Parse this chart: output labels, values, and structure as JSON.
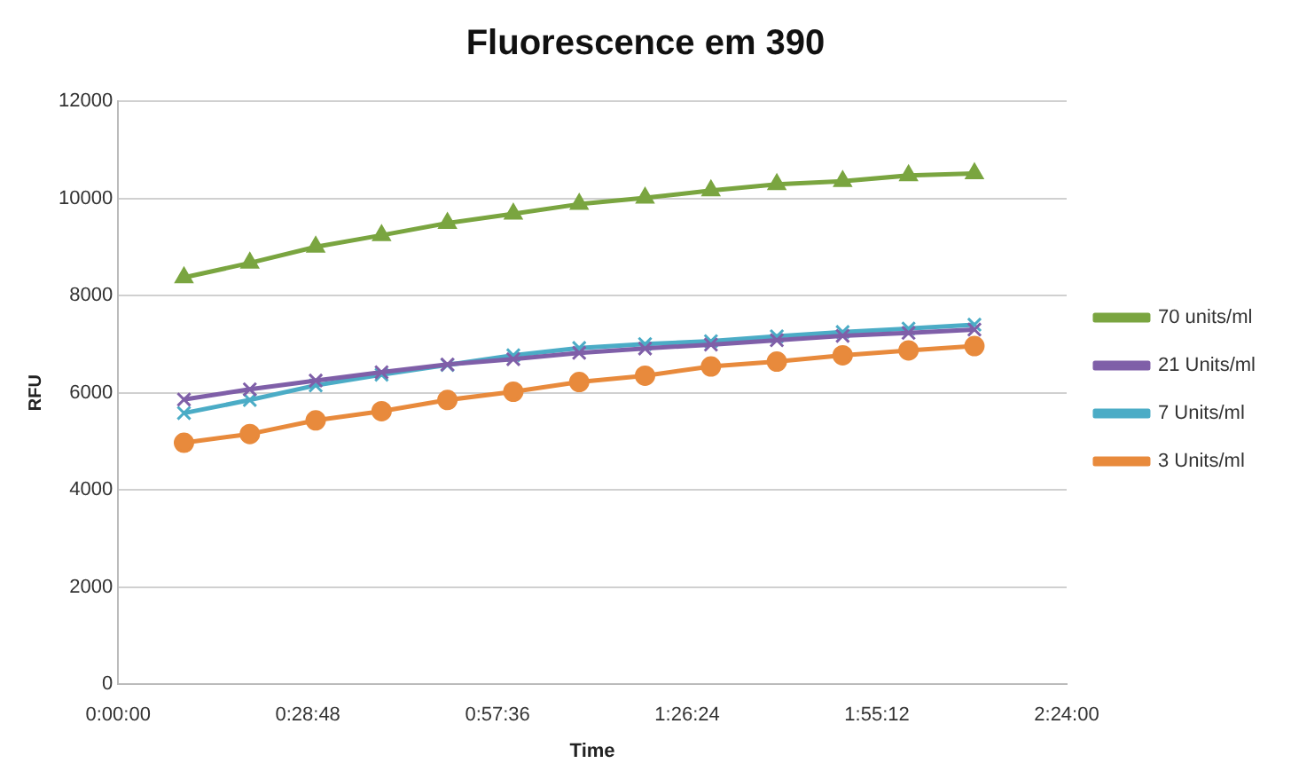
{
  "chart_data": {
    "type": "line",
    "title": "Fluorescence em 390",
    "xlabel": "Time",
    "ylabel": "RFU",
    "x": [
      0.1667,
      0.3333,
      0.5,
      0.6667,
      0.8333,
      1,
      1.1667,
      1.3333,
      1.5,
      1.6667,
      1.8333,
      2,
      2.1667
    ],
    "xlim": [
      0,
      2.4
    ],
    "xticks": [
      {
        "value": 0,
        "label": "0:00:00"
      },
      {
        "value": 0.48,
        "label": "0:28:48"
      },
      {
        "value": 0.96,
        "label": "0:57:36"
      },
      {
        "value": 1.44,
        "label": "1:26:24"
      },
      {
        "value": 1.92,
        "label": "1:55:12"
      },
      {
        "value": 2.4,
        "label": "2:24:00"
      }
    ],
    "ylim": [
      0,
      12000
    ],
    "yticks": [
      0,
      2000,
      4000,
      6000,
      8000,
      10000,
      12000
    ],
    "grid": "y",
    "legend": "right",
    "line_style": "solid",
    "series": [
      {
        "name": "70 units/ml",
        "color": "#7aa540",
        "marker": "triangle",
        "values": [
          8370,
          8670,
          9000,
          9240,
          9490,
          9680,
          9880,
          10010,
          10160,
          10290,
          10350,
          10470,
          10510
        ]
      },
      {
        "name": "21 Units/ml",
        "color": "#7f5fa8",
        "marker": "cross",
        "values": [
          5860,
          6070,
          6250,
          6420,
          6580,
          6690,
          6820,
          6910,
          6990,
          7080,
          7170,
          7230,
          7300
        ]
      },
      {
        "name": "7 Units/ml",
        "color": "#4bacc6",
        "marker": "cross",
        "values": [
          5580,
          5850,
          6150,
          6370,
          6570,
          6770,
          6920,
          7000,
          7060,
          7160,
          7250,
          7320,
          7400
        ]
      },
      {
        "name": "3 Units/ml",
        "color": "#e88a3c",
        "marker": "circle",
        "values": [
          4970,
          5150,
          5430,
          5620,
          5850,
          6020,
          6220,
          6350,
          6540,
          6640,
          6770,
          6870,
          6960
        ]
      }
    ]
  }
}
